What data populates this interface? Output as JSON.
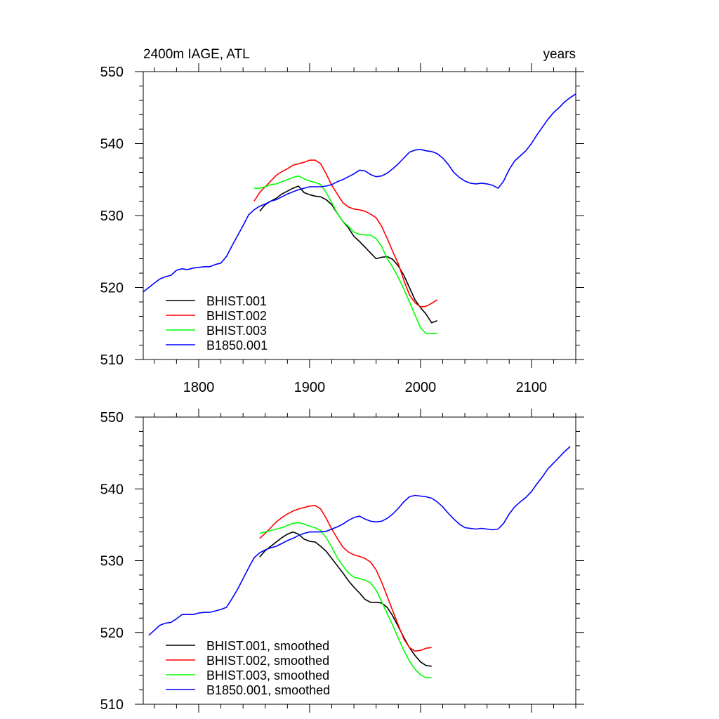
{
  "chart_data": [
    {
      "type": "line",
      "title_left": "2400m IAGE, ATL",
      "title_right": "years",
      "xlim": [
        1750,
        2140
      ],
      "ylim": [
        510,
        550
      ],
      "x_ticks": [
        1800,
        1900,
        2000,
        2100
      ],
      "x_tick_labels": [
        "1800",
        "1900",
        "2000",
        "2100"
      ],
      "y_ticks": [
        510,
        520,
        530,
        540,
        550
      ],
      "y_tick_labels": [
        "510",
        "520",
        "530",
        "540",
        "550"
      ],
      "show_x_tick_labels": true,
      "legend_placement": "bottom-left",
      "series": [
        {
          "name": "BHIST.001",
          "color": "#000000",
          "x": [
            1855,
            1860,
            1865,
            1870,
            1875,
            1880,
            1885,
            1890,
            1895,
            1900,
            1905,
            1910,
            1915,
            1920,
            1925,
            1930,
            1935,
            1940,
            1945,
            1950,
            1955,
            1960,
            1965,
            1970,
            1975,
            1980,
            1985,
            1990,
            1995,
            2000,
            2005,
            2010,
            2015
          ],
          "y": [
            530.6,
            531.5,
            532.0,
            532.4,
            533.0,
            533.4,
            533.8,
            534.1,
            533.2,
            532.9,
            532.7,
            532.6,
            532.2,
            531.5,
            530.3,
            529.2,
            528.3,
            527.1,
            526.4,
            525.6,
            524.8,
            524.0,
            524.2,
            524.3,
            523.9,
            523.0,
            521.7,
            520.0,
            518.3,
            517.2,
            516.3,
            515.1,
            515.4
          ]
        },
        {
          "name": "BHIST.002",
          "color": "#ff0000",
          "x": [
            1850,
            1855,
            1860,
            1865,
            1870,
            1875,
            1880,
            1885,
            1890,
            1895,
            1900,
            1905,
            1910,
            1915,
            1920,
            1925,
            1930,
            1935,
            1940,
            1945,
            1950,
            1955,
            1960,
            1965,
            1970,
            1975,
            1980,
            1985,
            1990,
            1995,
            2000,
            2005,
            2010,
            2015
          ],
          "y": [
            532.0,
            533.2,
            534.0,
            534.8,
            535.6,
            536.1,
            536.5,
            537.0,
            537.2,
            537.4,
            537.7,
            537.7,
            537.2,
            535.8,
            534.2,
            533.0,
            531.8,
            531.2,
            530.9,
            530.8,
            530.6,
            530.2,
            529.7,
            528.5,
            526.8,
            525.0,
            523.3,
            521.0,
            519.0,
            517.9,
            517.3,
            517.4,
            517.8,
            518.3
          ]
        },
        {
          "name": "BHIST.003",
          "color": "#00ff00",
          "x": [
            1850,
            1855,
            1860,
            1865,
            1870,
            1875,
            1880,
            1885,
            1890,
            1895,
            1900,
            1905,
            1910,
            1915,
            1920,
            1925,
            1930,
            1935,
            1940,
            1945,
            1950,
            1955,
            1960,
            1965,
            1970,
            1975,
            1980,
            1985,
            1990,
            1995,
            2000,
            2005,
            2010,
            2015
          ],
          "y": [
            533.8,
            533.8,
            534.0,
            534.3,
            534.4,
            534.7,
            535.0,
            535.3,
            535.5,
            535.1,
            534.8,
            534.6,
            534.3,
            533.2,
            531.8,
            530.3,
            529.2,
            528.5,
            527.7,
            527.4,
            527.3,
            527.3,
            526.8,
            525.7,
            524.0,
            522.8,
            521.4,
            519.8,
            518.0,
            516.2,
            514.4,
            513.6,
            513.6,
            513.6
          ]
        },
        {
          "name": "B1850.001",
          "color": "#0000ff",
          "x": [
            1750,
            1755,
            1760,
            1765,
            1770,
            1775,
            1780,
            1785,
            1790,
            1795,
            1800,
            1805,
            1810,
            1815,
            1820,
            1825,
            1830,
            1835,
            1840,
            1845,
            1850,
            1855,
            1860,
            1865,
            1870,
            1875,
            1880,
            1885,
            1890,
            1895,
            1900,
            1905,
            1910,
            1915,
            1920,
            1925,
            1930,
            1935,
            1940,
            1945,
            1950,
            1955,
            1960,
            1965,
            1970,
            1975,
            1980,
            1985,
            1990,
            1995,
            2000,
            2005,
            2010,
            2015,
            2020,
            2025,
            2030,
            2035,
            2040,
            2045,
            2050,
            2055,
            2060,
            2065,
            2070,
            2075,
            2080,
            2085,
            2090,
            2095,
            2100,
            2105,
            2110,
            2115,
            2120,
            2125,
            2130,
            2135,
            2140
          ],
          "y": [
            519.4,
            520.0,
            520.6,
            521.2,
            521.5,
            521.7,
            522.4,
            522.6,
            522.5,
            522.7,
            522.8,
            522.9,
            522.9,
            523.2,
            523.4,
            524.3,
            525.8,
            527.2,
            528.6,
            530.1,
            530.8,
            531.3,
            531.6,
            532.0,
            532.2,
            532.6,
            533.0,
            533.3,
            533.6,
            533.8,
            534.0,
            534.0,
            534.0,
            534.1,
            534.3,
            534.7,
            535.0,
            535.4,
            535.8,
            536.3,
            536.2,
            535.7,
            535.4,
            535.5,
            535.9,
            536.5,
            537.2,
            538.0,
            538.8,
            539.1,
            539.2,
            539.0,
            538.9,
            538.6,
            538.0,
            537.1,
            536.0,
            535.3,
            534.8,
            534.5,
            534.4,
            534.5,
            534.4,
            534.2,
            533.8,
            534.8,
            536.4,
            537.6,
            538.3,
            539.0,
            540.0,
            541.2,
            542.3,
            543.4,
            544.3,
            545.0,
            545.8,
            546.4,
            546.9
          ]
        }
      ]
    },
    {
      "type": "line",
      "xlim": [
        1750,
        2140
      ],
      "ylim": [
        510,
        550
      ],
      "x_ticks": [
        1800,
        1900,
        2000,
        2100
      ],
      "y_ticks": [
        510,
        520,
        530,
        540,
        550
      ],
      "y_tick_labels": [
        "510",
        "520",
        "530",
        "540",
        "550"
      ],
      "show_x_tick_labels": false,
      "legend_placement": "bottom-left",
      "series": [
        {
          "name": "BHIST.001, smoothed",
          "color": "#000000",
          "x": [
            1855,
            1860,
            1865,
            1870,
            1875,
            1880,
            1885,
            1890,
            1895,
            1900,
            1905,
            1910,
            1915,
            1920,
            1925,
            1930,
            1935,
            1940,
            1945,
            1950,
            1955,
            1960,
            1965,
            1970,
            1975,
            1980,
            1985,
            1990,
            1995,
            2000,
            2005,
            2010
          ],
          "y": [
            530.5,
            531.4,
            532.0,
            532.6,
            533.2,
            533.7,
            534.0,
            533.7,
            533.0,
            532.7,
            532.6,
            532.0,
            531.3,
            530.3,
            529.3,
            528.3,
            527.2,
            526.3,
            525.5,
            524.6,
            524.2,
            524.2,
            524.1,
            523.5,
            522.3,
            520.8,
            519.3,
            517.9,
            516.8,
            515.9,
            515.4,
            515.3
          ]
        },
        {
          "name": "BHIST.002, smoothed",
          "color": "#ff0000",
          "x": [
            1855,
            1860,
            1865,
            1870,
            1875,
            1880,
            1885,
            1890,
            1895,
            1900,
            1905,
            1910,
            1915,
            1920,
            1925,
            1930,
            1935,
            1940,
            1945,
            1950,
            1955,
            1960,
            1965,
            1970,
            1975,
            1980,
            1985,
            1990,
            1995,
            2000,
            2005,
            2010
          ],
          "y": [
            533.1,
            533.8,
            534.6,
            535.4,
            536.0,
            536.5,
            536.9,
            537.2,
            537.4,
            537.6,
            537.7,
            537.2,
            535.9,
            534.4,
            533.1,
            531.9,
            531.2,
            530.8,
            530.6,
            530.3,
            529.8,
            528.7,
            527.0,
            525.0,
            523.0,
            521.0,
            519.1,
            517.9,
            517.4,
            517.5,
            517.8,
            517.9
          ]
        },
        {
          "name": "BHIST.003, smoothed",
          "color": "#00ff00",
          "x": [
            1855,
            1860,
            1865,
            1870,
            1875,
            1880,
            1885,
            1890,
            1895,
            1900,
            1905,
            1910,
            1915,
            1920,
            1925,
            1930,
            1935,
            1940,
            1945,
            1950,
            1955,
            1960,
            1965,
            1970,
            1975,
            1980,
            1985,
            1990,
            1995,
            2000,
            2005,
            2010
          ],
          "y": [
            533.8,
            534.0,
            534.2,
            534.4,
            534.6,
            534.9,
            535.2,
            535.3,
            535.1,
            534.8,
            534.6,
            534.2,
            533.2,
            531.9,
            530.4,
            529.3,
            528.3,
            527.7,
            527.5,
            527.3,
            526.9,
            525.9,
            524.3,
            522.6,
            521.0,
            519.2,
            517.5,
            516.0,
            514.9,
            514.1,
            513.7,
            513.7
          ]
        },
        {
          "name": "B1850.001, smoothed",
          "color": "#0000ff",
          "x": [
            1755,
            1760,
            1765,
            1770,
            1775,
            1780,
            1785,
            1790,
            1795,
            1800,
            1805,
            1810,
            1815,
            1820,
            1825,
            1830,
            1835,
            1840,
            1845,
            1850,
            1855,
            1860,
            1865,
            1870,
            1875,
            1880,
            1885,
            1890,
            1895,
            1900,
            1905,
            1910,
            1915,
            1920,
            1925,
            1930,
            1935,
            1940,
            1945,
            1950,
            1955,
            1960,
            1965,
            1970,
            1975,
            1980,
            1985,
            1990,
            1995,
            2000,
            2005,
            2010,
            2015,
            2020,
            2025,
            2030,
            2035,
            2040,
            2045,
            2050,
            2055,
            2060,
            2065,
            2070,
            2075,
            2080,
            2085,
            2090,
            2095,
            2100,
            2105,
            2110,
            2115,
            2120,
            2125,
            2130,
            2135
          ],
          "y": [
            519.6,
            520.3,
            521.0,
            521.3,
            521.4,
            521.9,
            522.5,
            522.5,
            522.5,
            522.7,
            522.8,
            522.8,
            523.0,
            523.2,
            523.5,
            524.7,
            526.0,
            527.5,
            529.0,
            530.4,
            531.1,
            531.5,
            531.8,
            532.0,
            532.4,
            532.8,
            533.1,
            533.5,
            533.8,
            534.0,
            534.0,
            534.0,
            534.1,
            534.4,
            534.7,
            535.1,
            535.6,
            536.0,
            536.2,
            535.8,
            535.5,
            535.4,
            535.5,
            535.9,
            536.5,
            537.3,
            538.2,
            538.9,
            539.1,
            539.0,
            538.9,
            538.7,
            538.2,
            537.5,
            536.6,
            535.8,
            535.1,
            534.6,
            534.5,
            534.4,
            534.5,
            534.4,
            534.3,
            534.4,
            535.2,
            536.5,
            537.5,
            538.2,
            538.8,
            539.6,
            540.7,
            541.7,
            542.8,
            543.6,
            544.4,
            545.2,
            545.9
          ]
        }
      ]
    }
  ]
}
